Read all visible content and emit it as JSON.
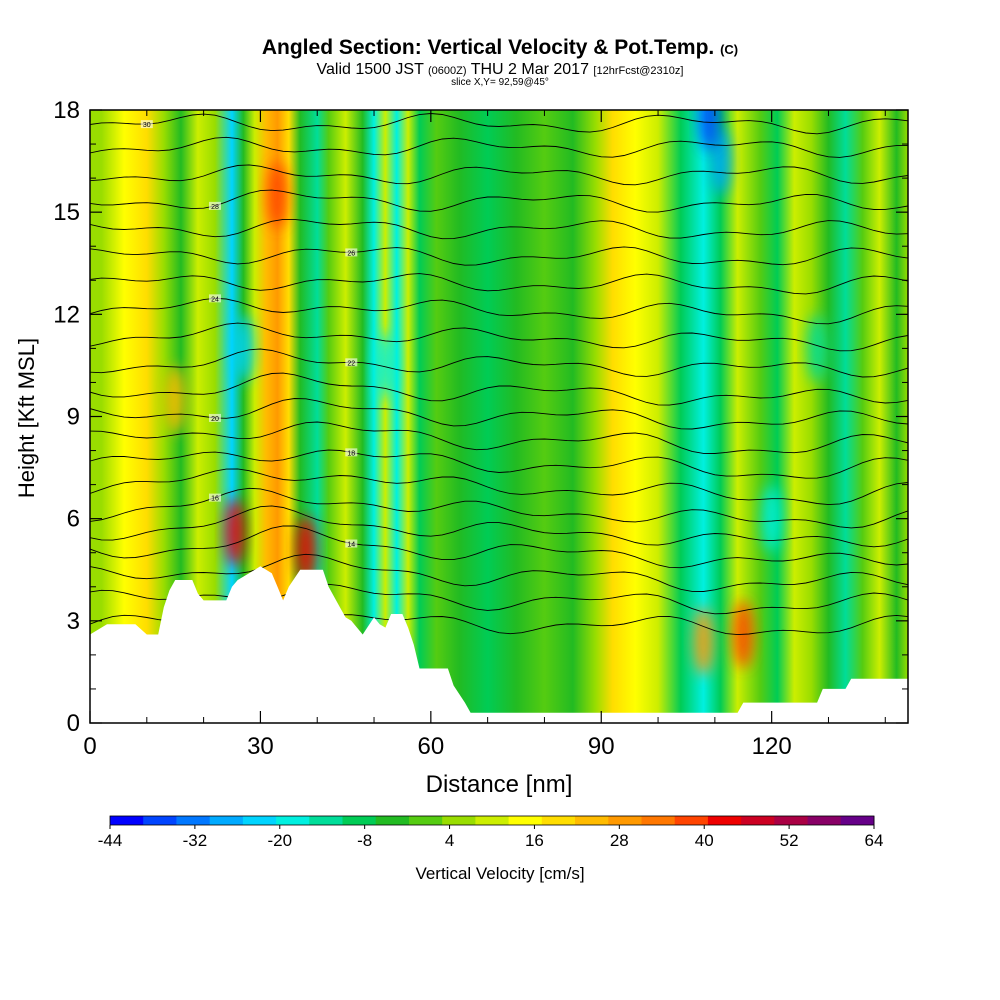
{
  "header": {
    "title": "Angled Section: Vertical Velocity & Pot.Temp.",
    "title_unit": "(C)",
    "subtitle_valid": "Valid 1500 JST",
    "subtitle_utc": "(0600Z)",
    "subtitle_date": "THU 2 Mar 2017",
    "subtitle_fcst": "[12hrFcst@2310z]",
    "slice": "slice X,Y= 92,59@45°"
  },
  "chart_data": {
    "type": "heatmap",
    "xlabel": "Distance [nm]",
    "ylabel": "Height [Kft MSL]",
    "xlim": [
      0,
      144
    ],
    "ylim": [
      0,
      18
    ],
    "x_ticks": [
      0,
      30,
      60,
      90,
      120
    ],
    "y_ticks": [
      0,
      3,
      6,
      9,
      12,
      15,
      18
    ],
    "colorbar": {
      "label": "Vertical Velocity [cm/s]",
      "range": [
        -44,
        64
      ],
      "tick_values": [
        -44,
        -32,
        -20,
        -8,
        4,
        16,
        28,
        40,
        52,
        64
      ],
      "colors": [
        "#0000ff",
        "#0044ff",
        "#0077ff",
        "#00aaff",
        "#00d4ff",
        "#00f0e0",
        "#00dd99",
        "#00cc55",
        "#22bb22",
        "#55cc11",
        "#99dd00",
        "#ccee00",
        "#ffff00",
        "#ffdd00",
        "#ffbb00",
        "#ff9900",
        "#ff7700",
        "#ff4400",
        "#ee0000",
        "#cc0022",
        "#aa0044",
        "#880066",
        "#660088"
      ]
    },
    "velocity_columns": [
      {
        "x": 2,
        "v": 6
      },
      {
        "x": 6,
        "v": 14
      },
      {
        "x": 10,
        "v": 20
      },
      {
        "x": 13,
        "v": 4
      },
      {
        "x": 16,
        "v": -6
      },
      {
        "x": 19,
        "v": 10
      },
      {
        "x": 22,
        "v": 4
      },
      {
        "x": 25,
        "v": -22
      },
      {
        "x": 27,
        "v": -4
      },
      {
        "x": 29,
        "v": 10
      },
      {
        "x": 31,
        "v": 24
      },
      {
        "x": 33,
        "v": 30
      },
      {
        "x": 35,
        "v": 20
      },
      {
        "x": 37,
        "v": -4
      },
      {
        "x": 40,
        "v": -14
      },
      {
        "x": 42,
        "v": 0
      },
      {
        "x": 45,
        "v": 8
      },
      {
        "x": 48,
        "v": -4
      },
      {
        "x": 50,
        "v": -18
      },
      {
        "x": 52,
        "v": 12
      },
      {
        "x": 54,
        "v": -20
      },
      {
        "x": 56,
        "v": 10
      },
      {
        "x": 58,
        "v": -8
      },
      {
        "x": 61,
        "v": 0
      },
      {
        "x": 65,
        "v": -4
      },
      {
        "x": 70,
        "v": -8
      },
      {
        "x": 75,
        "v": -2
      },
      {
        "x": 80,
        "v": 2
      },
      {
        "x": 85,
        "v": -6
      },
      {
        "x": 89,
        "v": 6
      },
      {
        "x": 92,
        "v": 18
      },
      {
        "x": 96,
        "v": 14
      },
      {
        "x": 100,
        "v": 8
      },
      {
        "x": 104,
        "v": -8
      },
      {
        "x": 108,
        "v": -20
      },
      {
        "x": 111,
        "v": -10
      },
      {
        "x": 114,
        "v": 8
      },
      {
        "x": 118,
        "v": 2
      },
      {
        "x": 121,
        "v": -10
      },
      {
        "x": 124,
        "v": 12
      },
      {
        "x": 127,
        "v": 6
      },
      {
        "x": 130,
        "v": -6
      },
      {
        "x": 133,
        "v": -14
      },
      {
        "x": 136,
        "v": 2
      },
      {
        "x": 139,
        "v": 10
      },
      {
        "x": 142,
        "v": -2
      },
      {
        "x": 144,
        "v": 4
      }
    ],
    "hot_spots": [
      {
        "x": 25.5,
        "y": 5.6,
        "v": 44
      },
      {
        "x": 38,
        "y": 5.1,
        "v": 42
      },
      {
        "x": 33,
        "y": 15.5,
        "v": 36
      },
      {
        "x": 115,
        "y": 2.6,
        "v": 36
      },
      {
        "x": 108,
        "y": 2.4,
        "v": 28
      },
      {
        "x": 15,
        "y": 9.5,
        "v": 26
      }
    ],
    "cold_spots": [
      {
        "x": 111,
        "y": 16.5,
        "v": -26
      },
      {
        "x": 109,
        "y": 17.8,
        "v": -36
      },
      {
        "x": 27,
        "y": 11,
        "v": -24
      },
      {
        "x": 52,
        "y": 10.5,
        "v": -20
      },
      {
        "x": 120,
        "y": 6,
        "v": -16
      },
      {
        "x": 128,
        "y": 11,
        "v": -14
      }
    ],
    "terrain": [
      [
        0,
        2.6
      ],
      [
        3,
        2.9
      ],
      [
        8,
        2.9
      ],
      [
        10,
        2.6
      ],
      [
        12,
        2.6
      ],
      [
        13,
        3.4
      ],
      [
        14,
        3.9
      ],
      [
        15,
        4.2
      ],
      [
        18,
        4.2
      ],
      [
        19,
        3.8
      ],
      [
        20,
        3.6
      ],
      [
        24,
        3.6
      ],
      [
        25,
        4.0
      ],
      [
        26,
        4.2
      ],
      [
        28,
        4.4
      ],
      [
        30,
        4.6
      ],
      [
        32,
        4.4
      ],
      [
        33,
        4.0
      ],
      [
        34,
        3.6
      ],
      [
        35,
        4.0
      ],
      [
        37,
        4.5
      ],
      [
        41,
        4.5
      ],
      [
        42,
        4.0
      ],
      [
        44,
        3.4
      ],
      [
        45,
        3.1
      ],
      [
        46,
        3.0
      ],
      [
        47,
        2.8
      ],
      [
        48,
        2.6
      ],
      [
        50,
        3.1
      ],
      [
        51,
        2.9
      ],
      [
        52,
        2.8
      ],
      [
        53,
        3.2
      ],
      [
        55,
        3.2
      ],
      [
        56,
        2.8
      ],
      [
        57,
        2.3
      ],
      [
        58,
        1.6
      ],
      [
        63,
        1.6
      ],
      [
        64,
        1.1
      ],
      [
        66,
        0.6
      ],
      [
        67,
        0.3
      ],
      [
        114,
        0.3
      ],
      [
        115,
        0.6
      ],
      [
        128,
        0.6
      ],
      [
        129,
        1.0
      ],
      [
        133,
        1.0
      ],
      [
        134,
        1.3
      ],
      [
        144,
        1.3
      ]
    ],
    "isentropes": [
      {
        "label": "",
        "y0": 2.9,
        "dip": 0.2
      },
      {
        "label": "",
        "y0": 3.6,
        "dip": 0.3
      },
      {
        "label": "",
        "y0": 4.3,
        "dip": 0.4
      },
      {
        "label": "14",
        "y0": 5.0,
        "dip": 0.5
      },
      {
        "label": "",
        "y0": 5.6,
        "dip": 0.5
      },
      {
        "label": "16",
        "y0": 6.2,
        "dip": 0.5
      },
      {
        "label": "",
        "y0": 6.9,
        "dip": 0.5
      },
      {
        "label": "18",
        "y0": 7.6,
        "dip": 0.4
      },
      {
        "label": "",
        "y0": 8.3,
        "dip": 0.4
      },
      {
        "label": "20",
        "y0": 9.0,
        "dip": 0.3
      },
      {
        "label": "",
        "y0": 9.7,
        "dip": 0.3
      },
      {
        "label": "22",
        "y0": 10.5,
        "dip": 0.2
      },
      {
        "label": "",
        "y0": 11.3,
        "dip": 0.2
      },
      {
        "label": "24",
        "y0": 12.1,
        "dip": 0.2
      },
      {
        "label": "",
        "y0": 12.9,
        "dip": 0.1
      },
      {
        "label": "26",
        "y0": 13.7,
        "dip": 0.1
      },
      {
        "label": "",
        "y0": 14.5,
        "dip": 0.1
      },
      {
        "label": "28",
        "y0": 15.3,
        "dip": 0.1
      },
      {
        "label": "",
        "y0": 16.1,
        "dip": 0.0
      },
      {
        "label": "",
        "y0": 16.9,
        "dip": 0.0
      },
      {
        "label": "30",
        "y0": 17.6,
        "dip": 0.0
      }
    ]
  }
}
